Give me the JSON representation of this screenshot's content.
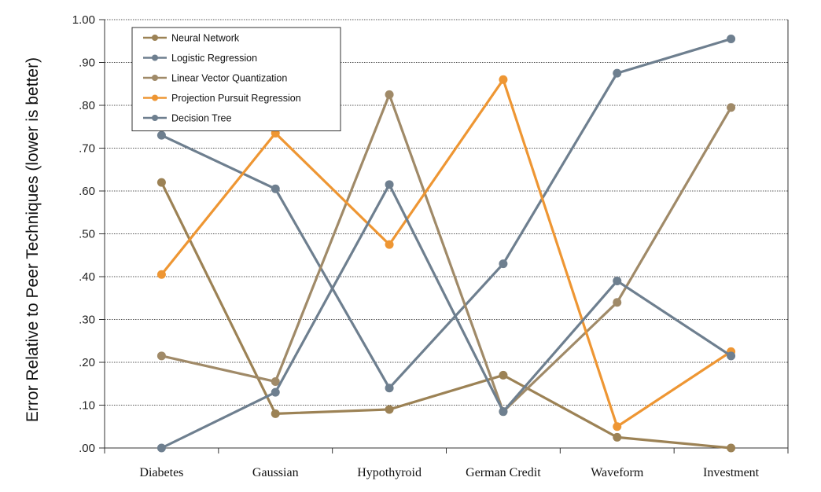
{
  "chart_data": {
    "type": "line",
    "title": "",
    "xlabel": "",
    "ylabel": "Error Relative to Peer Techniques (lower is better)",
    "categories": [
      "Diabetes",
      "Gaussian",
      "Hypothyroid",
      "German Credit",
      "Waveform",
      "Investment"
    ],
    "ylim": [
      0,
      1.0
    ],
    "yticks": [
      ".00",
      ".10",
      ".20",
      ".30",
      ".40",
      ".50",
      ".60",
      ".70",
      ".80",
      ".90",
      "1.00"
    ],
    "grid": "horizontal dotted",
    "legend_position": "top-left",
    "series": [
      {
        "name": "Neural Network",
        "color": "#9C8255",
        "values": [
          0.62,
          0.08,
          0.09,
          0.17,
          0.025,
          0.0
        ]
      },
      {
        "name": "Logistic Regression",
        "color": "#6E7F8F",
        "values": [
          0.73,
          0.605,
          0.14,
          0.43,
          0.875,
          0.955
        ]
      },
      {
        "name": "Linear Vector Quantization",
        "color": "#A08A68",
        "values": [
          0.215,
          0.155,
          0.825,
          0.085,
          0.34,
          0.795
        ]
      },
      {
        "name": "Projection Pursuit Regression",
        "color": "#EE9633",
        "values": [
          0.405,
          0.735,
          0.475,
          0.86,
          0.05,
          0.225
        ]
      },
      {
        "name": "Decision Tree",
        "color": "#6E7F8F",
        "values": [
          0.0,
          0.13,
          0.615,
          0.085,
          0.39,
          0.215
        ]
      }
    ]
  }
}
